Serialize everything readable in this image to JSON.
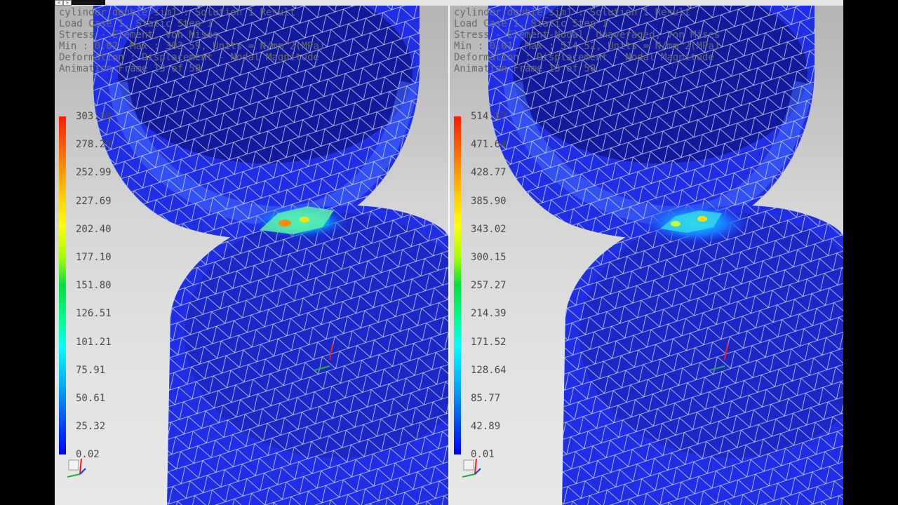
{
  "window": {
    "tab_left_icon": "<",
    "tab_right_icon": ">"
  },
  "left": {
    "info_lines": [
      "cylinder_double_sim1 : Solution 1 Result",
      "Load Case 1, Static Step 1",
      "Stress - Element, Von Mises",
      "Min : 0.02, Max : 303.59, Units = N/mm^2(MPa)",
      "Deformation : Displacement - Nodal Magnitude",
      "Animation Frame 13 of 50"
    ],
    "legend_values": [
      "303.59",
      "278.29",
      "252.99",
      "227.69",
      "202.40",
      "177.10",
      "151.80",
      "126.51",
      "101.21",
      "75.91",
      "50.61",
      "25.32",
      "0.02"
    ]
  },
  "right": {
    "info_lines": [
      "cylinder_double_sim1 : Solution 1 Result",
      "Load Case 1, Static Step 1",
      "Stress - Element-Nodal, Unaveraged, Von Mises",
      "Min : 0.01, Max : 514.52, Units = N/mm^2(MPa)",
      "Deformation : Displacement - Nodal Magnitude",
      "Animation Frame 13 of 50"
    ],
    "legend_values": [
      "514.52",
      "471.64",
      "428.77",
      "385.90",
      "343.02",
      "300.15",
      "257.27",
      "214.39",
      "171.52",
      "128.64",
      "85.77",
      "42.89",
      "0.01"
    ]
  },
  "colors": {
    "mesh_blue": "#1f2fe8",
    "mesh_dark": "#121a9c",
    "grid_line": "#c8c8d8",
    "hot_spot": "#ff8a00"
  },
  "icons": [
    "chevron-left-icon",
    "chevron-right-icon",
    "coordinate-triad-icon",
    "view-cube-icon"
  ]
}
